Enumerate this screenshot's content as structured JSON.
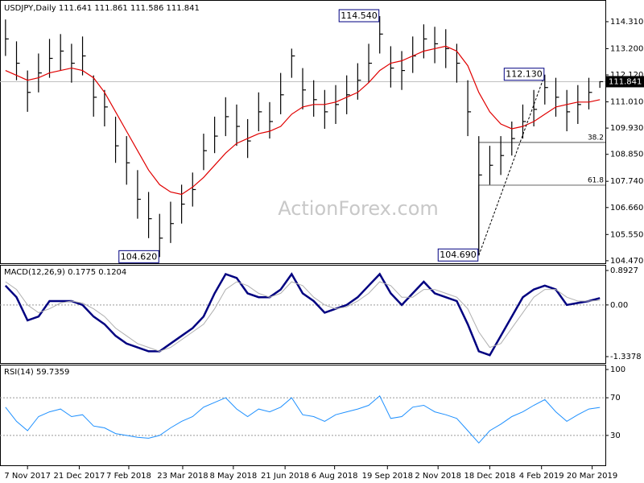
{
  "chart_data": {
    "type": "ohlc",
    "title": "USDJPY,Daily  111.641 111.861 111.586 111.841",
    "watermark": "ActionForex.com",
    "xlim": [
      -0.5,
      54.5
    ],
    "xticks": [
      {
        "value": 2,
        "label": "7 Nov 2017"
      },
      {
        "value": 6.7,
        "label": "21 Dec 2017"
      },
      {
        "value": 11.2,
        "label": "7 Feb 2018"
      },
      {
        "value": 16.1,
        "label": "23 Mar 2018"
      },
      {
        "value": 20.7,
        "label": "8 May 2018"
      },
      {
        "value": 25.4,
        "label": "21 Jun 2018"
      },
      {
        "value": 29.9,
        "label": "6 Aug 2018"
      },
      {
        "value": 34.7,
        "label": "19 Sep 2018"
      },
      {
        "value": 39.3,
        "label": "2 Nov 2018"
      },
      {
        "value": 44,
        "label": "18 Dec 2018"
      },
      {
        "value": 48.7,
        "label": "4 Feb 2019"
      },
      {
        "value": 53.3,
        "label": "20 Mar 2019"
      }
    ],
    "ylim": [
      104.4,
      115.07
    ],
    "yticks": [
      {
        "value": 114.31,
        "label": "114.310"
      },
      {
        "value": 113.2,
        "label": "113.200"
      },
      {
        "value": 112.12,
        "label": "112.120"
      },
      {
        "value": 111.01,
        "label": "111.010"
      },
      {
        "value": 109.93,
        "label": "109.930"
      },
      {
        "value": 108.85,
        "label": "108.850"
      },
      {
        "value": 107.74,
        "label": "107.740"
      },
      {
        "value": 106.66,
        "label": "106.660"
      },
      {
        "value": 105.55,
        "label": "105.550"
      },
      {
        "value": 104.47,
        "label": "104.470"
      }
    ],
    "bar_color": "#000000",
    "high": [
      114.4,
      113.5,
      112.3,
      113.0,
      113.6,
      113.8,
      113.4,
      113.7,
      112.1,
      111.5,
      110.4,
      109.6,
      108.2,
      107.3,
      106.4,
      106.9,
      107.6,
      108.1,
      109.7,
      110.4,
      111.2,
      110.9,
      110.3,
      111.4,
      111.0,
      112.2,
      113.2,
      112.4,
      111.9,
      111.5,
      111.7,
      112.1,
      112.6,
      113.4,
      114.54,
      113.3,
      113.1,
      113.7,
      114.2,
      114.1,
      114.0,
      113.4,
      111.9,
      109.6,
      109.2,
      109.6,
      110.2,
      110.9,
      111.5,
      112.13,
      112.0,
      111.5,
      111.7,
      112.0,
      111.86
    ],
    "low": [
      112.9,
      111.9,
      110.6,
      111.4,
      112.0,
      112.3,
      111.8,
      112.1,
      110.4,
      110.0,
      108.5,
      107.6,
      106.2,
      105.4,
      104.62,
      105.2,
      106.0,
      106.7,
      108.2,
      108.9,
      109.6,
      109.2,
      108.7,
      109.8,
      109.5,
      110.5,
      112.0,
      110.7,
      110.4,
      109.9,
      110.1,
      110.5,
      111.1,
      111.8,
      113.0,
      111.6,
      111.5,
      112.2,
      112.8,
      112.6,
      112.4,
      111.8,
      109.6,
      104.69,
      107.6,
      108.0,
      108.8,
      109.5,
      110.0,
      110.9,
      110.4,
      109.8,
      110.1,
      110.7,
      111.586
    ],
    "close": [
      113.6,
      112.6,
      111.4,
      112.2,
      112.8,
      113.1,
      112.6,
      112.9,
      111.2,
      110.8,
      109.2,
      108.5,
      107.0,
      106.2,
      105.4,
      106.0,
      106.8,
      107.4,
      109.0,
      109.6,
      110.4,
      110.0,
      109.4,
      110.6,
      110.2,
      111.3,
      112.9,
      111.5,
      111.1,
      110.6,
      110.9,
      111.3,
      111.9,
      112.6,
      113.8,
      112.4,
      112.3,
      112.9,
      113.6,
      113.4,
      113.2,
      112.6,
      110.6,
      108.0,
      108.4,
      108.8,
      109.5,
      110.2,
      110.7,
      111.6,
      111.2,
      110.6,
      110.9,
      111.4,
      111.841
    ],
    "ma": {
      "color": "#e00000",
      "values": [
        112.3,
        112.1,
        111.9,
        112.0,
        112.2,
        112.3,
        112.4,
        112.3,
        112.0,
        111.4,
        110.6,
        109.8,
        109.0,
        108.2,
        107.6,
        107.3,
        107.2,
        107.5,
        107.9,
        108.4,
        108.9,
        109.3,
        109.5,
        109.7,
        109.8,
        110.0,
        110.5,
        110.8,
        110.9,
        110.9,
        111.0,
        111.2,
        111.4,
        111.8,
        112.3,
        112.6,
        112.7,
        112.9,
        113.1,
        113.2,
        113.3,
        113.1,
        112.5,
        111.4,
        110.6,
        110.1,
        109.9,
        110.0,
        110.2,
        110.5,
        110.8,
        110.9,
        111.0,
        111.0,
        111.1
      ]
    },
    "last": {
      "label": "111.841",
      "value": 111.841
    },
    "annotations": [
      {
        "label": "114.540",
        "x": 34,
        "value": 114.54
      },
      {
        "label": "104.620",
        "x": 14,
        "value": 104.62
      },
      {
        "label": "104.690",
        "x": 43,
        "value": 104.69
      },
      {
        "label": "112.130",
        "x": 49,
        "value": 112.13
      }
    ],
    "fib": [
      {
        "label": "38.2",
        "x": 43,
        "value": 109.34
      },
      {
        "label": "61.8",
        "x": 43,
        "value": 107.58
      }
    ],
    "macd": {
      "label": "MACD(12,26,9) 0.1775 0.1204",
      "ylim": [
        -1.484,
        1.018
      ],
      "yticks": [
        0.8927,
        {
          "value": 0,
          "label": "0.00"
        },
        -1.3378
      ],
      "series": [
        {
          "color": "#000080",
          "values": [
            0.5,
            0.2,
            -0.4,
            -0.3,
            0.1,
            0.1,
            0.1,
            0.0,
            -0.3,
            -0.5,
            -0.8,
            -1.0,
            -1.1,
            -1.2,
            -1.2,
            -1.0,
            -0.8,
            -0.6,
            -0.3,
            0.3,
            0.8,
            0.7,
            0.3,
            0.2,
            0.2,
            0.4,
            0.8,
            0.3,
            0.1,
            -0.2,
            -0.1,
            0.0,
            0.2,
            0.5,
            0.8,
            0.3,
            0.0,
            0.3,
            0.6,
            0.3,
            0.2,
            0.1,
            -0.5,
            -1.2,
            -1.3,
            -0.8,
            -0.3,
            0.2,
            0.4,
            0.5,
            0.4,
            0.0,
            0.05,
            0.1,
            0.1775
          ]
        },
        {
          "color": "#b0b0b0",
          "values": [
            0.6,
            0.4,
            0.0,
            -0.2,
            -0.1,
            0.05,
            0.1,
            0.05,
            -0.1,
            -0.3,
            -0.6,
            -0.8,
            -1.0,
            -1.1,
            -1.2,
            -1.1,
            -0.9,
            -0.7,
            -0.5,
            -0.1,
            0.4,
            0.6,
            0.5,
            0.3,
            0.2,
            0.3,
            0.6,
            0.5,
            0.2,
            0.0,
            -0.1,
            -0.05,
            0.1,
            0.3,
            0.6,
            0.5,
            0.2,
            0.2,
            0.4,
            0.4,
            0.3,
            0.2,
            -0.1,
            -0.7,
            -1.1,
            -1.0,
            -0.6,
            -0.2,
            0.2,
            0.4,
            0.4,
            0.2,
            0.1,
            0.1,
            0.1204
          ]
        }
      ]
    },
    "rsi": {
      "label": "RSI(14) 59.7359",
      "ylim": [
        0,
        100
      ],
      "yticks": [
        100,
        70,
        30
      ],
      "levels": [
        70,
        30
      ],
      "color": "#1e90ff",
      "values": [
        60,
        45,
        35,
        50,
        55,
        58,
        50,
        52,
        40,
        38,
        32,
        30,
        28,
        27,
        30,
        38,
        45,
        50,
        60,
        65,
        70,
        58,
        50,
        58,
        55,
        60,
        70,
        52,
        50,
        45,
        52,
        55,
        58,
        62,
        72,
        48,
        50,
        60,
        62,
        55,
        52,
        48,
        35,
        22,
        35,
        42,
        50,
        55,
        62,
        68,
        55,
        45,
        52,
        58,
        59.7359
      ]
    }
  }
}
